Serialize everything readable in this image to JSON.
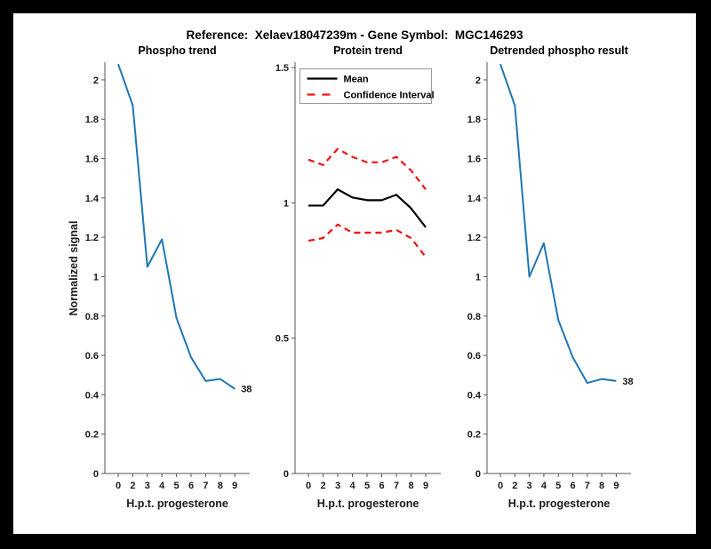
{
  "header": {
    "title": "Reference:  Xelaev18047239m - Gene Symbol:  MGC146293"
  },
  "colors": {
    "background": "#000000",
    "canvas": "#ffffff",
    "blue_line": "#1f77b4",
    "red_dashed": "#f01414",
    "mean_line": "#000000",
    "axis": "#555555",
    "tick_text": "#1a1a1a"
  },
  "chart_data": [
    {
      "type": "line",
      "title": "Phospho trend",
      "xlabel": "H.p.t. progesterone",
      "ylabel": "Normalized signal",
      "x_categories": [
        "0",
        "2",
        "3",
        "4",
        "5",
        "6",
        "7",
        "8",
        "9"
      ],
      "ylim": [
        0,
        2.09
      ],
      "yticks": [
        0,
        0.2,
        0.4,
        0.6,
        0.8,
        1,
        1.2,
        1.4,
        1.6,
        1.8,
        2
      ],
      "ytick_labels": [
        "0",
        "0.2",
        "0.4",
        "0.6",
        "0.8",
        "1",
        "1.2",
        "1.4",
        "1.6",
        "1.8",
        "2"
      ],
      "grid": false,
      "legend": null,
      "series": [
        {
          "name": "phospho-signal",
          "color": "#1f77b4",
          "dash": "solid",
          "values": [
            2.08,
            1.87,
            1.05,
            1.19,
            0.79,
            0.59,
            0.47,
            0.48,
            0.43
          ]
        }
      ],
      "end_annotation": "38"
    },
    {
      "type": "line",
      "title": "Protein trend",
      "xlabel": "H.p.t. progesterone",
      "ylabel": "",
      "x_categories": [
        "0",
        "2",
        "3",
        "4",
        "5",
        "6",
        "7",
        "8",
        "9"
      ],
      "ylim": [
        0,
        1.52
      ],
      "yticks": [
        0,
        0.5,
        1,
        1.5
      ],
      "ytick_labels": [
        "0",
        "0.5",
        "1",
        "1.5"
      ],
      "grid": false,
      "legend": {
        "position": "upper-left",
        "entries": [
          {
            "label": "Mean",
            "color": "#000000",
            "dash": "solid"
          },
          {
            "label": "Confidence Interval",
            "color": "#f01414",
            "dash": "dashed"
          }
        ]
      },
      "series": [
        {
          "name": "mean",
          "color": "#000000",
          "dash": "solid",
          "values": [
            0.99,
            0.99,
            1.05,
            1.02,
            1.01,
            1.01,
            1.03,
            0.98,
            0.91
          ]
        },
        {
          "name": "ci-upper",
          "color": "#f01414",
          "dash": "dashed",
          "values": [
            1.16,
            1.14,
            1.2,
            1.17,
            1.15,
            1.15,
            1.17,
            1.12,
            1.05
          ]
        },
        {
          "name": "ci-lower",
          "color": "#f01414",
          "dash": "dashed",
          "values": [
            0.86,
            0.87,
            0.92,
            0.89,
            0.89,
            0.89,
            0.9,
            0.87,
            0.8
          ]
        }
      ],
      "end_annotation": null
    },
    {
      "type": "line",
      "title": "Detrended phospho result",
      "xlabel": "H.p.t. progesterone",
      "ylabel": "",
      "x_categories": [
        "0",
        "2",
        "3",
        "4",
        "5",
        "6",
        "7",
        "8",
        "9"
      ],
      "ylim": [
        0,
        2.09
      ],
      "yticks": [
        0,
        0.2,
        0.4,
        0.6,
        0.8,
        1,
        1.2,
        1.4,
        1.6,
        1.8,
        2
      ],
      "ytick_labels": [
        "0",
        "0.2",
        "0.4",
        "0.6",
        "0.8",
        "1",
        "1.2",
        "1.4",
        "1.6",
        "1.8",
        "2"
      ],
      "grid": false,
      "legend": null,
      "series": [
        {
          "name": "detrended-phospho",
          "color": "#1f77b4",
          "dash": "solid",
          "values": [
            2.08,
            1.87,
            1.0,
            1.17,
            0.78,
            0.59,
            0.46,
            0.48,
            0.47
          ]
        }
      ],
      "end_annotation": "38"
    }
  ]
}
